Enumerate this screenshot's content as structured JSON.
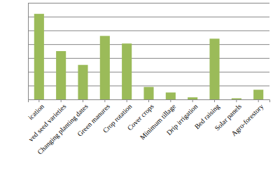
{
  "chart_data": {
    "type": "bar",
    "categories": [
      "ication",
      "ved seed varieties",
      "Changing planting dates",
      "Green manures",
      "Crop rotation",
      "Cover crops",
      "Minimum tillage",
      "Drip irrigation",
      "Bed raising",
      "Solar panels",
      "Agro-forestory"
    ],
    "values": [
      62,
      35,
      25,
      46,
      40.5,
      9,
      5,
      1.5,
      44,
      0.8,
      7
    ],
    "color": "#9bbb59",
    "ylim": [
      0,
      70
    ],
    "yticks": [
      0,
      10,
      20,
      30,
      40,
      50,
      60,
      70
    ],
    "grid": true,
    "tick_labels": "x"
  }
}
